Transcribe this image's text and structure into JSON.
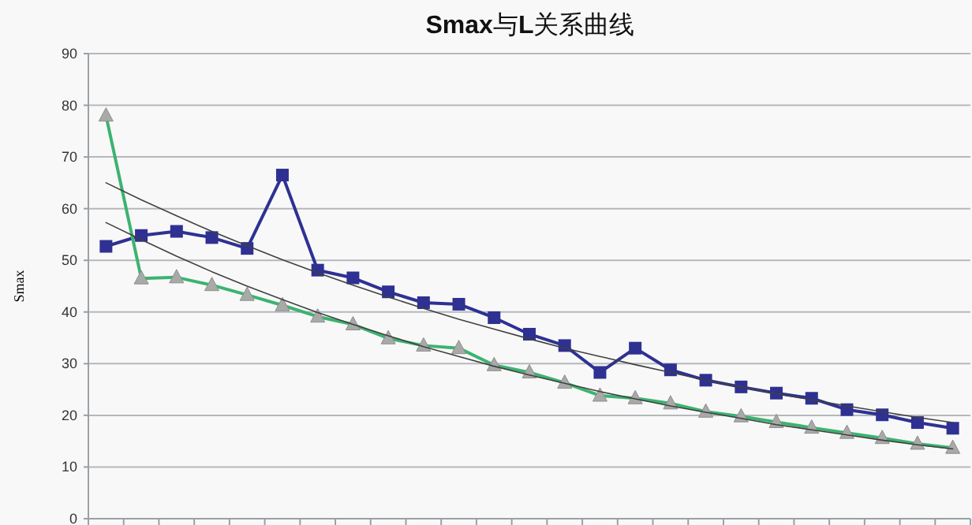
{
  "chart_data": {
    "type": "line",
    "title": "**Smax**与**L**关系曲线",
    "ylabel": "Smax",
    "categories": [
      null,
      null,
      null,
      null,
      null,
      null,
      null,
      null,
      null,
      null,
      null,
      null,
      null,
      null,
      null,
      null,
      null,
      null,
      null,
      null,
      null,
      null,
      null,
      null,
      null
    ],
    "series": [
      {
        "color": "#2e3192",
        "marker": "square",
        "values": [
          52.7,
          54.8,
          55.6,
          54.4,
          52.3,
          66.5,
          48.1,
          46.6,
          43.9,
          41.8,
          41.5,
          38.9,
          35.7,
          33.5,
          28.3,
          33.0,
          28.8,
          26.8,
          25.5,
          24.3,
          23.3,
          21.1,
          20.1,
          18.6,
          17.5
        ]
      },
      {
        "color": "#3cb371",
        "marker": "triangle",
        "values": [
          78,
          46.5,
          46.7,
          45.2,
          43.3,
          41.3,
          39.1,
          37.6,
          34.9,
          33.5,
          33.0,
          29.7,
          28.3,
          26.3,
          23.8,
          23.3,
          22.3,
          20.7,
          19.8,
          18.7,
          17.6,
          16.6,
          15.6,
          14.5,
          13.7
        ]
      },
      {
        "color": "#404040",
        "marker": "none",
        "values": [
          65,
          61.7,
          58.6,
          55.6,
          52.8,
          50.1,
          47.6,
          45.2,
          42.9,
          40.7,
          38.6,
          36.7,
          34.8,
          33.0,
          31.4,
          29.8,
          28.3,
          26.8,
          25.5,
          24.2,
          23.0,
          21.8,
          20.7,
          19.6,
          18.6
        ]
      },
      {
        "color": "#404040",
        "marker": "none",
        "values": [
          57.3,
          54.0,
          50.8,
          47.8,
          45.0,
          42.4,
          39.9,
          37.6,
          35.4,
          33.3,
          31.4,
          29.5,
          27.8,
          26.2,
          24.6,
          23.2,
          21.8,
          20.6,
          19.4,
          18.2,
          17.2,
          16.2,
          15.2,
          14.3,
          13.5
        ]
      }
    ],
    "ylim": [
      0,
      90
    ],
    "yticks": [
      0,
      10,
      20,
      30,
      40,
      50,
      60,
      70,
      80,
      90
    ],
    "grid": "y",
    "tick_labels": "y"
  }
}
